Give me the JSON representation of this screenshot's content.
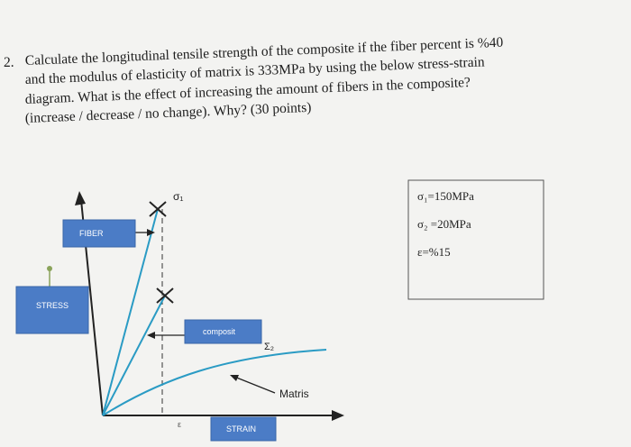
{
  "question": {
    "number": "2.",
    "lines": [
      "Calculate the longitudinal tensile strength of the composite if the fiber percent is %40",
      "and the modulus of elasticity of matrix is 333MPa by using the below stress-strain",
      "diagram. What is the effect of increasing the amount of fibers in the composite?",
      "(increase / decrease / no change). Why? (30 points)"
    ]
  },
  "diagram": {
    "sigma1": "σ₁",
    "fiber": "FIBER",
    "stress": "STRESS",
    "composite": "composit",
    "sigma2": "Σ₂",
    "matrix": "Matris",
    "epsilon": "ε",
    "strain": "STRAIN"
  },
  "given": [
    "σ₁=150MPa",
    "σ₂ =20MPa",
    "ε=%15"
  ]
}
